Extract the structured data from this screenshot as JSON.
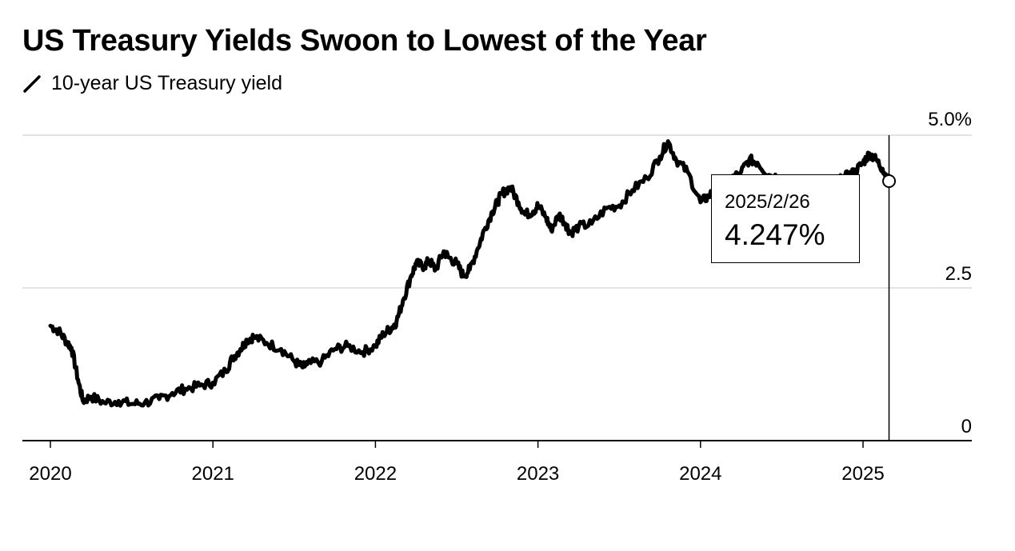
{
  "title": "US Treasury Yields Swoon to Lowest of the Year",
  "legend_label": "10-year US Treasury yield",
  "tooltip": {
    "date": "2025/2/26",
    "value": "4.247%"
  },
  "colors": {
    "line": "#000000",
    "grid": "#d9d9d9",
    "axis": "#000000"
  },
  "chart_data": {
    "type": "line",
    "title": "US Treasury Yields Swoon to Lowest of the Year",
    "x_ticks": [
      "2020",
      "2021",
      "2022",
      "2023",
      "2024",
      "2025"
    ],
    "y_ticks": [
      "5.0%",
      "2.5",
      "0"
    ],
    "ylim": [
      0,
      5
    ],
    "xlim": [
      2019.82,
      2025.65
    ],
    "grid": true,
    "y_axis_side": "right",
    "series": [
      {
        "name": "10-year US Treasury yield",
        "x": [
          2020.0,
          2020.05,
          2020.1,
          2020.13,
          2020.17,
          2020.2,
          2020.25,
          2020.33,
          2020.42,
          2020.5,
          2020.58,
          2020.67,
          2020.75,
          2020.83,
          2020.92,
          2021.0,
          2021.08,
          2021.12,
          2021.17,
          2021.21,
          2021.25,
          2021.33,
          2021.42,
          2021.5,
          2021.55,
          2021.58,
          2021.67,
          2021.75,
          2021.83,
          2021.92,
          2022.0,
          2022.05,
          2022.1,
          2022.13,
          2022.17,
          2022.22,
          2022.25,
          2022.3,
          2022.33,
          2022.37,
          2022.42,
          2022.45,
          2022.5,
          2022.54,
          2022.58,
          2022.63,
          2022.67,
          2022.72,
          2022.75,
          2022.78,
          2022.83,
          2022.88,
          2022.92,
          2022.97,
          2023.0,
          2023.05,
          2023.08,
          2023.13,
          2023.17,
          2023.2,
          2023.25,
          2023.33,
          2023.42,
          2023.5,
          2023.58,
          2023.67,
          2023.75,
          2023.8,
          2023.85,
          2023.92,
          2024.0,
          2024.05,
          2024.1,
          2024.17,
          2024.25,
          2024.3,
          2024.35,
          2024.42,
          2024.5,
          2024.58,
          2024.67,
          2024.72,
          2024.8,
          2024.87,
          2024.92,
          2024.95,
          2025.0,
          2025.04,
          2025.08,
          2025.12,
          2025.16
        ],
        "values": [
          1.88,
          1.8,
          1.62,
          1.52,
          1.0,
          0.65,
          0.72,
          0.62,
          0.65,
          0.6,
          0.62,
          0.68,
          0.78,
          0.85,
          0.9,
          0.95,
          1.15,
          1.35,
          1.5,
          1.65,
          1.7,
          1.6,
          1.5,
          1.3,
          1.2,
          1.25,
          1.3,
          1.5,
          1.55,
          1.45,
          1.55,
          1.75,
          1.85,
          1.95,
          2.3,
          2.7,
          2.9,
          2.85,
          2.95,
          2.8,
          3.1,
          3.0,
          2.9,
          2.7,
          2.8,
          3.15,
          3.45,
          3.75,
          3.9,
          4.05,
          4.15,
          3.9,
          3.7,
          3.75,
          3.85,
          3.65,
          3.45,
          3.7,
          3.55,
          3.4,
          3.5,
          3.55,
          3.8,
          3.85,
          4.1,
          4.3,
          4.65,
          4.9,
          4.6,
          4.4,
          3.9,
          4.0,
          4.15,
          4.25,
          4.4,
          4.6,
          4.55,
          4.35,
          4.3,
          4.15,
          3.7,
          3.65,
          4.05,
          4.3,
          4.35,
          4.4,
          4.55,
          4.7,
          4.6,
          4.45,
          4.247
        ]
      }
    ]
  }
}
